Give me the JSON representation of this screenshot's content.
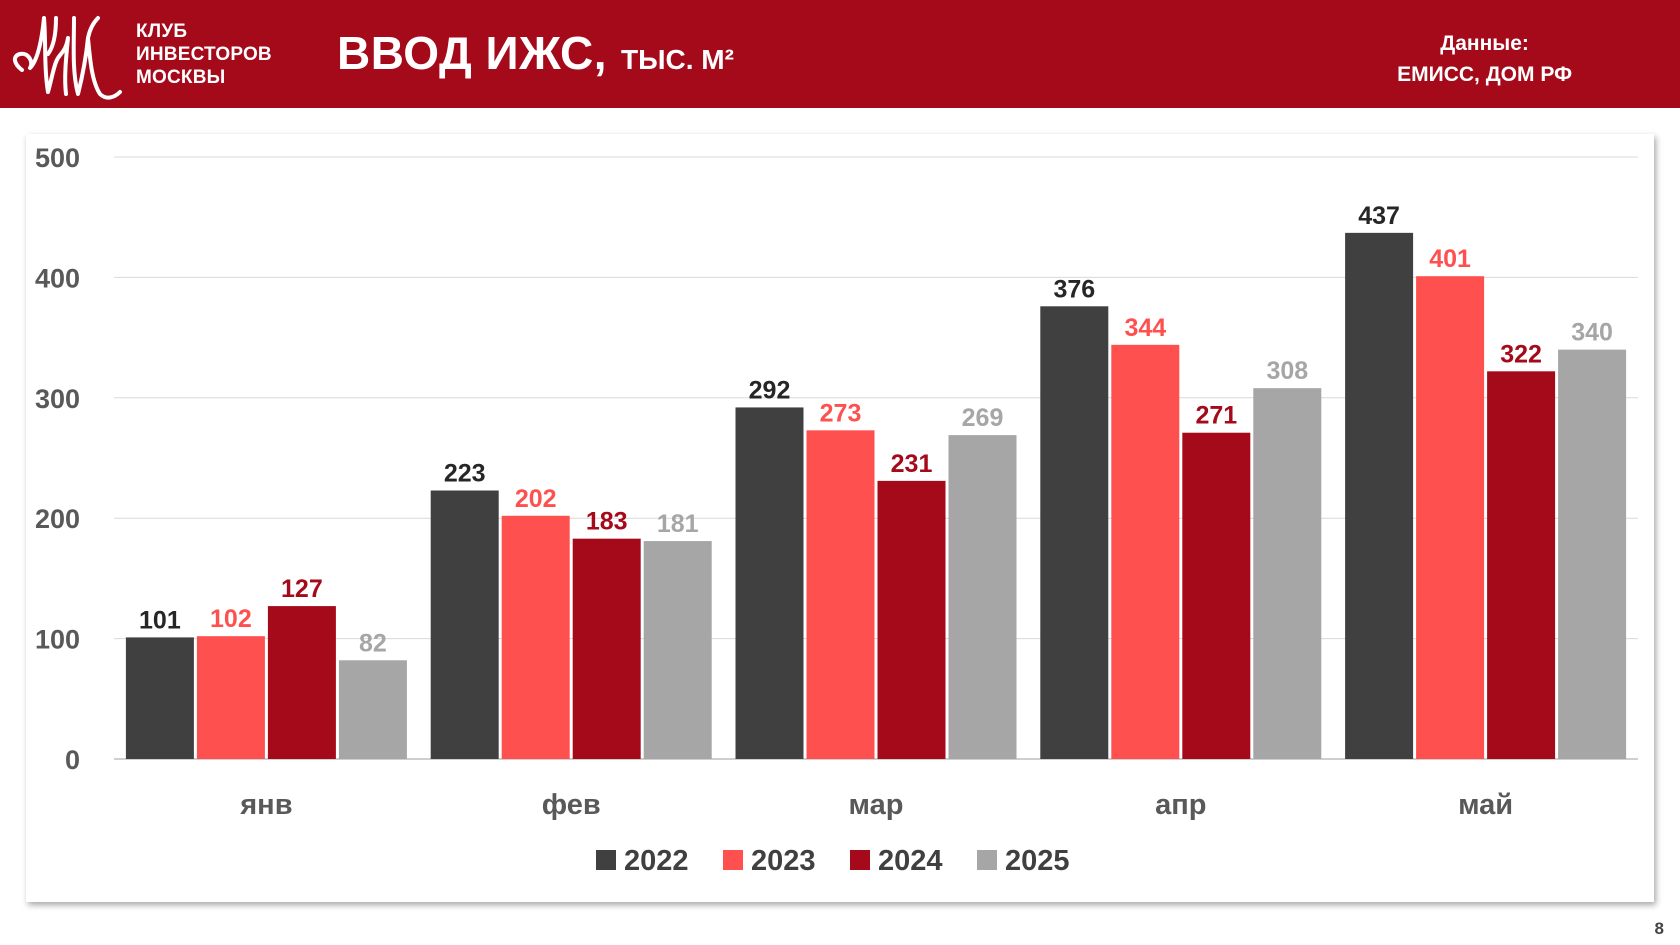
{
  "header": {
    "club_lines": [
      "КЛУБ",
      "ИНВЕСТОРОВ",
      "МОСКВЫ"
    ],
    "title": "ВВОД ИЖС,",
    "title_unit": "ТЫС. М²",
    "source_label": "Данные:",
    "source_value": "ЕМИСС, ДОМ РФ",
    "bg_color": "#a50a1b"
  },
  "page_number": "8",
  "chart_data": {
    "type": "bar",
    "title": "ВВОД ИЖС, ТЫС. М²",
    "categories": [
      "янв",
      "фев",
      "мар",
      "апр",
      "май"
    ],
    "series": [
      {
        "name": "2022",
        "color": "#404040",
        "values": [
          101,
          223,
          292,
          376,
          437
        ]
      },
      {
        "name": "2023",
        "color": "#ff5050",
        "values": [
          102,
          202,
          273,
          344,
          401
        ]
      },
      {
        "name": "2024",
        "color": "#a50a1b",
        "values": [
          127,
          183,
          231,
          271,
          322
        ]
      },
      {
        "name": "2025",
        "color": "#a6a6a6",
        "values": [
          82,
          181,
          269,
          308,
          340
        ]
      }
    ],
    "label_colors": [
      "#262626",
      "#ff5050",
      "#a50a1b",
      "#a6a6a6"
    ],
    "ylim": [
      0,
      500
    ],
    "yticks": [
      0,
      100,
      200,
      300,
      400,
      500
    ],
    "grid": true,
    "legend_position": "bottom"
  }
}
